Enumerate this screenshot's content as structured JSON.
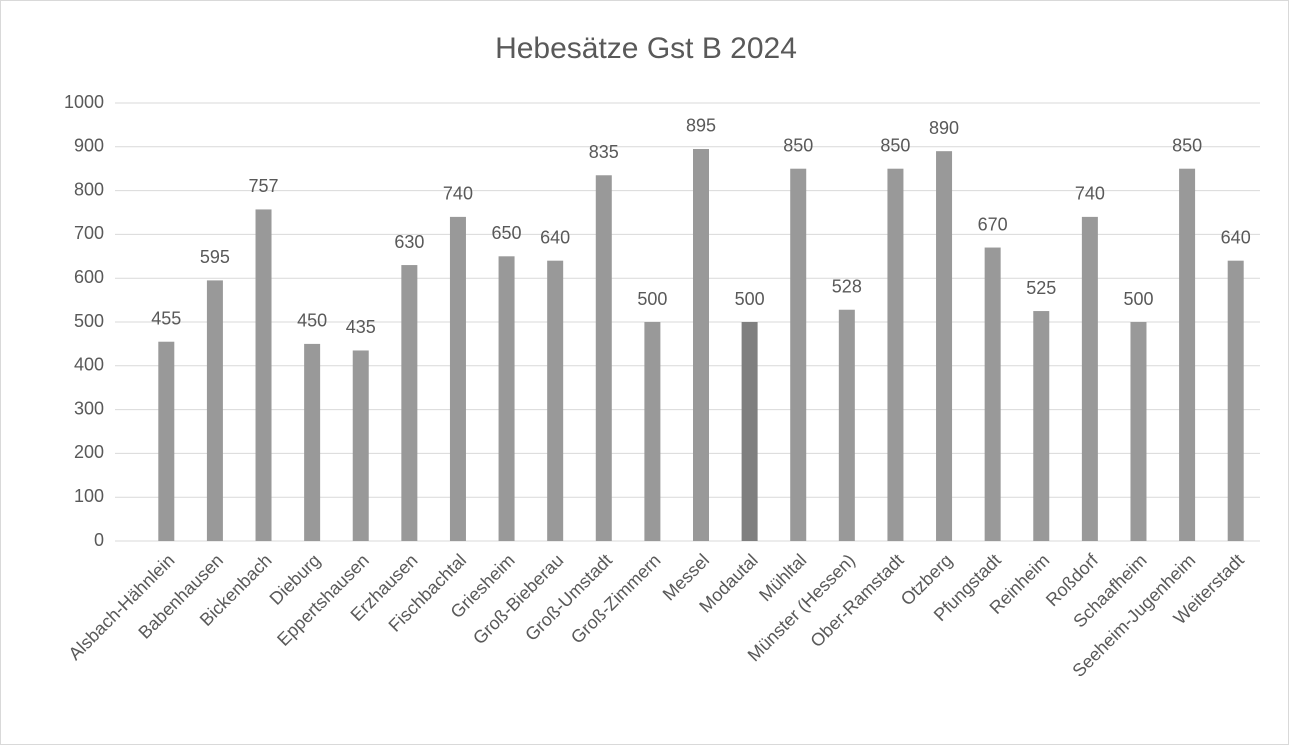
{
  "chart_data": {
    "type": "bar",
    "title": "Hebesätze Gst B 2024",
    "categories": [
      "Alsbach-Hähnlein",
      "Babenhausen",
      "Bickenbach",
      "Dieburg",
      "Eppertshausen",
      "Erzhausen",
      "Fischbachtal",
      "Griesheim",
      "Groß-Bieberau",
      "Groß-Umstadt",
      "Groß-Zimmern",
      "Messel",
      "Modautal",
      "Mühltal",
      "Münster (Hessen)",
      "Ober-Ramstadt",
      "Otzberg",
      "Pfungstadt",
      "Reinheim",
      "Roßdorf",
      "Schaafheim",
      "Seeheim-Jugenheim",
      "Weiterstadt"
    ],
    "values": [
      455,
      595,
      757,
      450,
      435,
      630,
      740,
      650,
      640,
      835,
      500,
      895,
      500,
      850,
      528,
      850,
      890,
      670,
      525,
      740,
      500,
      850,
      640
    ],
    "colors": [
      "#999999",
      "#999999",
      "#999999",
      "#999999",
      "#999999",
      "#999999",
      "#999999",
      "#999999",
      "#999999",
      "#999999",
      "#999999",
      "#999999",
      "#7f7f7f",
      "#999999",
      "#999999",
      "#999999",
      "#999999",
      "#999999",
      "#999999",
      "#999999",
      "#999999",
      "#999999",
      "#999999"
    ],
    "ylim": [
      0,
      1000
    ],
    "yticks": [
      0,
      100,
      200,
      300,
      400,
      500,
      600,
      700,
      800,
      900,
      1000
    ],
    "grid": true
  }
}
